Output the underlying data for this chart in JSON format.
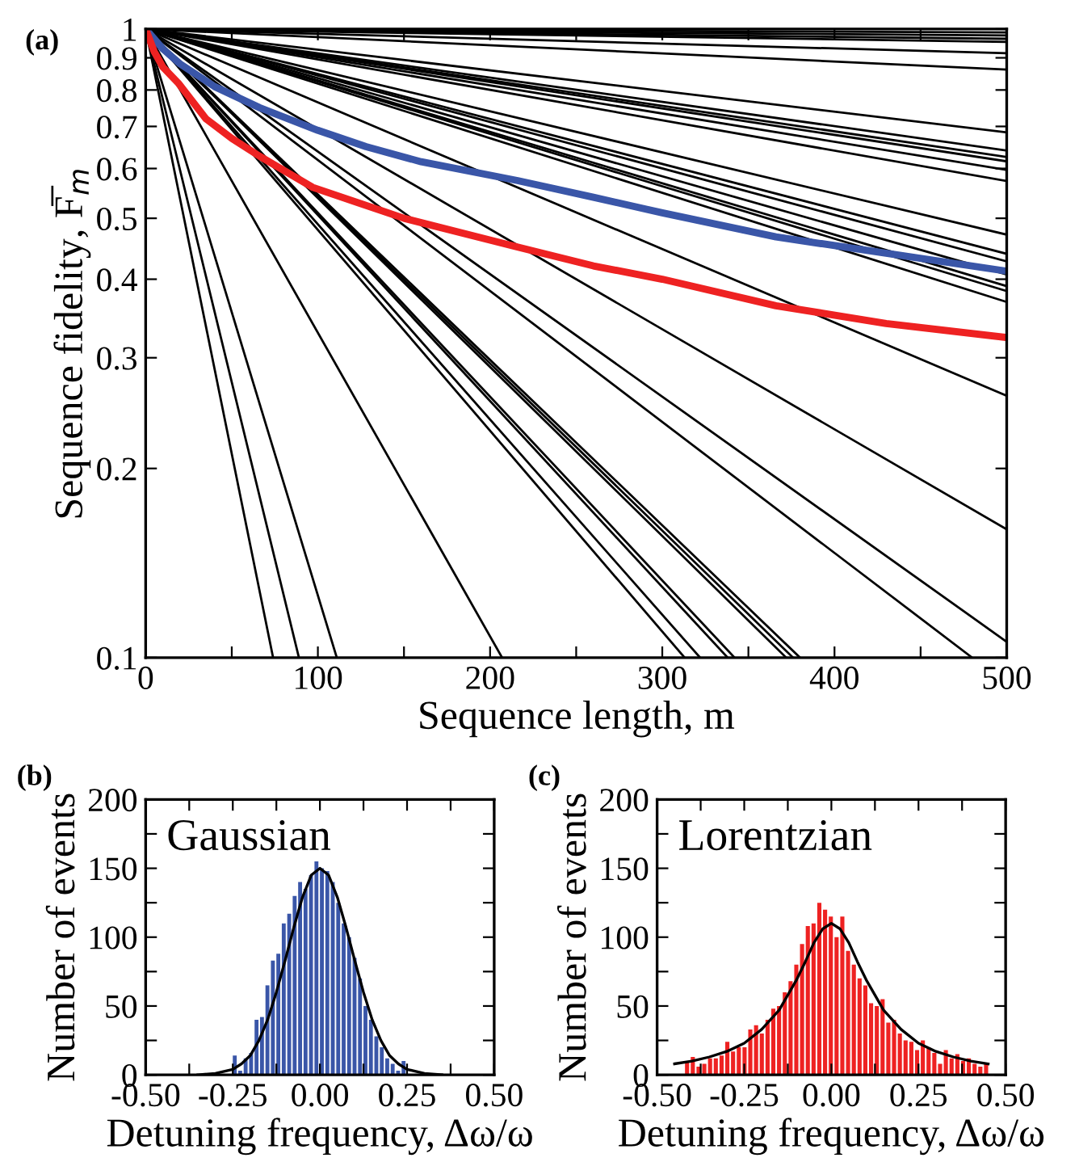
{
  "chart_data": [
    {
      "type": "line",
      "title": "(a)",
      "xlabel": "Sequence length, m",
      "ylabel": "Sequence fidelity, F̅$_{m}$",
      "log": "y",
      "grid": false,
      "legend": false,
      "xlim": [
        0,
        500
      ],
      "xticks": [
        0,
        {
          "value": 50,
          "label": null
        },
        100,
        {
          "value": 150,
          "label": null
        },
        200,
        {
          "value": 250,
          "label": null
        },
        300,
        {
          "value": 350,
          "label": null
        },
        400,
        {
          "value": 450,
          "label": null
        },
        500
      ],
      "ylim": [
        0.1,
        1
      ],
      "yticks": [
        0.1,
        0.2,
        0.3,
        0.4,
        0.5,
        0.6,
        0.7,
        0.8,
        0.9,
        1
      ],
      "series": [
        {
          "color": "#000000",
          "x": [
            0,
            500
          ],
          "values": [
            1,
            0.988
          ]
        },
        {
          "color": "#000000",
          "x": [
            0,
            500
          ],
          "values": [
            1,
            0.977
          ]
        },
        {
          "color": "#000000",
          "x": [
            0,
            500
          ],
          "values": [
            1,
            0.965
          ]
        },
        {
          "color": "#000000",
          "x": [
            0,
            500
          ],
          "values": [
            1,
            0.954
          ]
        },
        {
          "color": "#000000",
          "x": [
            0,
            500
          ],
          "values": [
            1,
            0.915
          ]
        },
        {
          "color": "#000000",
          "x": [
            0,
            500
          ],
          "values": [
            1,
            0.862
          ]
        },
        {
          "color": "#000000",
          "x": [
            0,
            500
          ],
          "values": [
            1,
            0.685
          ]
        },
        {
          "color": "#000000",
          "x": [
            0,
            500
          ],
          "values": [
            1,
            0.641
          ]
        },
        {
          "color": "#000000",
          "x": [
            0,
            500
          ],
          "values": [
            1,
            0.626
          ]
        },
        {
          "color": "#000000",
          "x": [
            0,
            500
          ],
          "values": [
            1,
            0.616
          ]
        },
        {
          "color": "#000000",
          "x": [
            0,
            500
          ],
          "values": [
            1,
            0.597
          ]
        },
        {
          "color": "#000000",
          "x": [
            0,
            500
          ],
          "values": [
            1,
            0.573
          ]
        },
        {
          "color": "#000000",
          "x": [
            0,
            500
          ],
          "values": [
            1,
            0.471
          ]
        },
        {
          "color": "#000000",
          "x": [
            0,
            500
          ],
          "values": [
            1,
            0.439
          ]
        },
        {
          "color": "#000000",
          "x": [
            0,
            500
          ],
          "values": [
            1,
            0.427
          ]
        },
        {
          "color": "#000000",
          "x": [
            0,
            500
          ],
          "values": [
            1,
            0.407
          ]
        },
        {
          "color": "#000000",
          "x": [
            0,
            500
          ],
          "values": [
            1,
            0.39
          ]
        },
        {
          "color": "#000000",
          "x": [
            0,
            500
          ],
          "values": [
            1,
            0.383
          ]
        },
        {
          "color": "#000000",
          "x": [
            0,
            500
          ],
          "values": [
            1,
            0.368
          ]
        },
        {
          "color": "#000000",
          "x": [
            0,
            500
          ],
          "values": [
            1,
            0.261
          ]
        },
        {
          "color": "#000000",
          "x": [
            0,
            500
          ],
          "values": [
            1,
            0.16
          ]
        },
        {
          "color": "#000000",
          "x": [
            0,
            500
          ],
          "values": [
            1,
            0.106
          ]
        },
        {
          "color": "#000000",
          "x": [
            0,
            480
          ],
          "values": [
            1,
            0.1
          ]
        },
        {
          "color": "#000000",
          "x": [
            0,
            380
          ],
          "values": [
            1,
            0.1
          ]
        },
        {
          "color": "#000000",
          "x": [
            0,
            376
          ],
          "values": [
            1,
            0.1
          ]
        },
        {
          "color": "#000000",
          "x": [
            0,
            372
          ],
          "values": [
            1,
            0.1
          ]
        },
        {
          "color": "#000000",
          "x": [
            0,
            342
          ],
          "values": [
            1,
            0.1
          ]
        },
        {
          "color": "#000000",
          "x": [
            0,
            338
          ],
          "values": [
            1,
            0.1
          ]
        },
        {
          "color": "#000000",
          "x": [
            0,
            322
          ],
          "values": [
            1,
            0.1
          ]
        },
        {
          "color": "#000000",
          "x": [
            0,
            313
          ],
          "values": [
            1,
            0.1
          ]
        },
        {
          "color": "#000000",
          "x": [
            0,
            207
          ],
          "values": [
            1,
            0.1
          ]
        },
        {
          "color": "#000000",
          "x": [
            0,
            111
          ],
          "values": [
            1,
            0.1
          ]
        },
        {
          "color": "#000000",
          "x": [
            0,
            89
          ],
          "values": [
            1,
            0.1
          ]
        },
        {
          "color": "#000000",
          "x": [
            0,
            74
          ],
          "values": [
            1,
            0.1
          ]
        },
        {
          "color": "#3a56a8",
          "x": [
            0,
            10,
            20,
            40,
            66,
            100,
            128,
            160,
            216,
            260,
            300,
            366,
            430,
            500
          ],
          "values": [
            1,
            0.93,
            0.88,
            0.81,
            0.75,
            0.69,
            0.65,
            0.615,
            0.574,
            0.54,
            0.51,
            0.467,
            0.44,
            0.412
          ]
        },
        {
          "color": "#ee2222",
          "x": [
            0,
            5,
            10,
            19,
            35,
            50,
            66,
            97,
            150,
            216,
            260,
            300,
            366,
            430,
            500
          ],
          "values": [
            1,
            0.92,
            0.87,
            0.82,
            0.72,
            0.67,
            0.628,
            0.56,
            0.5,
            0.45,
            0.42,
            0.4,
            0.363,
            0.34,
            0.323
          ]
        }
      ]
    },
    {
      "type": "histogram",
      "title": "(b)",
      "xlabel": "Detuning frequency, Δω/ω",
      "ylabel": "Number of events",
      "annotations": [
        "Gaussian"
      ],
      "grid": false,
      "legend": false,
      "color": "#3a56a8",
      "xlim": [
        -0.5,
        0.5
      ],
      "xticks": [
        {
          "value": -0.5,
          "label": "-0.50"
        },
        {
          "value": -0.375,
          "label": null
        },
        {
          "value": -0.25,
          "label": "-0.25"
        },
        {
          "value": -0.125,
          "label": null
        },
        {
          "value": 0,
          "label": "0.00"
        },
        {
          "value": 0.125,
          "label": null
        },
        {
          "value": 0.25,
          "label": "0.25"
        },
        {
          "value": 0.375,
          "label": null
        },
        {
          "value": 0.5,
          "label": "0.50"
        }
      ],
      "ylim": [
        0,
        200
      ],
      "yticks": [
        0,
        {
          "value": 25,
          "label": null
        },
        50,
        {
          "value": 75,
          "label": null
        },
        100,
        {
          "value": 125,
          "label": null
        },
        150,
        {
          "value": 175,
          "label": null
        },
        200
      ],
      "bins": [
        -0.25,
        -0.234375,
        -0.21875,
        -0.203125,
        -0.1875,
        -0.171875,
        -0.15625,
        -0.140625,
        -0.125,
        -0.109375,
        -0.09375,
        -0.078125,
        -0.0625,
        -0.046875,
        -0.03125,
        -0.015625,
        0,
        0.015625,
        0.03125,
        0.046875,
        0.0625,
        0.078125,
        0.09375,
        0.109375,
        0.125,
        0.140625,
        0.15625,
        0.171875,
        0.1875,
        0.203125,
        0.21875,
        0.234375,
        0.25
      ],
      "values": [
        14,
        3,
        12,
        16,
        40,
        42,
        65,
        83,
        88,
        110,
        117,
        130,
        140,
        135,
        145,
        155,
        150,
        148,
        140,
        125,
        110,
        100,
        85,
        70,
        50,
        40,
        28,
        20,
        12,
        8,
        3,
        10
      ],
      "series": [
        {
          "type": "line",
          "color": "#000000",
          "x": [
            -0.35,
            -0.3,
            -0.25,
            -0.225,
            -0.2,
            -0.175,
            -0.15,
            -0.125,
            -0.1,
            -0.075,
            -0.05,
            -0.025,
            0,
            0.025,
            0.05,
            0.075,
            0.1,
            0.125,
            0.15,
            0.175,
            0.2,
            0.225,
            0.25,
            0.3,
            0.35
          ],
          "values": [
            0,
            1,
            4,
            8,
            14,
            25,
            40,
            60,
            83,
            107,
            129,
            145,
            150,
            145,
            129,
            107,
            83,
            60,
            40,
            25,
            14,
            8,
            4,
            1,
            0
          ]
        }
      ]
    },
    {
      "type": "histogram",
      "title": "(c)",
      "xlabel": "Detuning frequency, Δω/ω",
      "ylabel": "Number of events",
      "annotations": [
        "Lorentzian"
      ],
      "grid": false,
      "legend": false,
      "color": "#ee2222",
      "xlim": [
        -0.5,
        0.5
      ],
      "xticks": [
        {
          "value": -0.5,
          "label": "-0.50"
        },
        {
          "value": -0.375,
          "label": null
        },
        {
          "value": -0.25,
          "label": "-0.25"
        },
        {
          "value": -0.125,
          "label": null
        },
        {
          "value": 0,
          "label": "0.00"
        },
        {
          "value": 0.125,
          "label": null
        },
        {
          "value": 0.25,
          "label": "0.25"
        },
        {
          "value": 0.375,
          "label": null
        },
        {
          "value": 0.5,
          "label": "0.50"
        }
      ],
      "ylim": [
        0,
        200
      ],
      "yticks": [
        0,
        {
          "value": 25,
          "label": null
        },
        50,
        {
          "value": 75,
          "label": null
        },
        100,
        {
          "value": 125,
          "label": null
        },
        150,
        {
          "value": 175,
          "label": null
        },
        200
      ],
      "bins": [
        -0.42,
        -0.4035,
        -0.387,
        -0.3705,
        -0.354,
        -0.3375,
        -0.321,
        -0.3045,
        -0.288,
        -0.2715,
        -0.255,
        -0.2385,
        -0.222,
        -0.2055,
        -0.189,
        -0.1725,
        -0.156,
        -0.1395,
        -0.123,
        -0.1065,
        -0.09,
        -0.0735,
        -0.057,
        -0.0405,
        -0.024,
        -0.0075,
        0.009,
        0.0255,
        0.042,
        0.0585,
        0.075,
        0.0915,
        0.108,
        0.1245,
        0.141,
        0.1575,
        0.174,
        0.1905,
        0.207,
        0.2235,
        0.24,
        0.2565,
        0.273,
        0.2895,
        0.306,
        0.3225,
        0.339,
        0.3555,
        0.372,
        0.3885,
        0.405,
        0.4215,
        0.438,
        0.4545
      ],
      "values": [
        10,
        13,
        6,
        8,
        12,
        12,
        14,
        24,
        17,
        20,
        20,
        33,
        36,
        30,
        40,
        48,
        50,
        60,
        68,
        80,
        95,
        108,
        110,
        125,
        120,
        115,
        100,
        115,
        90,
        80,
        70,
        65,
        52,
        50,
        55,
        38,
        40,
        30,
        25,
        24,
        18,
        25,
        20,
        16,
        8,
        18,
        12,
        15,
        10,
        12,
        8,
        6,
        8
      ],
      "series": [
        {
          "type": "line",
          "color": "#000000",
          "x": [
            -0.45,
            -0.4,
            -0.35,
            -0.3,
            -0.25,
            -0.2,
            -0.15,
            -0.1,
            -0.075,
            -0.05,
            -0.025,
            0,
            0.025,
            0.05,
            0.075,
            0.1,
            0.15,
            0.2,
            0.25,
            0.3,
            0.35,
            0.4,
            0.45
          ],
          "values": [
            8,
            10,
            13,
            17,
            23,
            33,
            47,
            69,
            82,
            96,
            106,
            110,
            106,
            96,
            82,
            69,
            47,
            33,
            23,
            17,
            13,
            10,
            8
          ]
        }
      ]
    }
  ]
}
